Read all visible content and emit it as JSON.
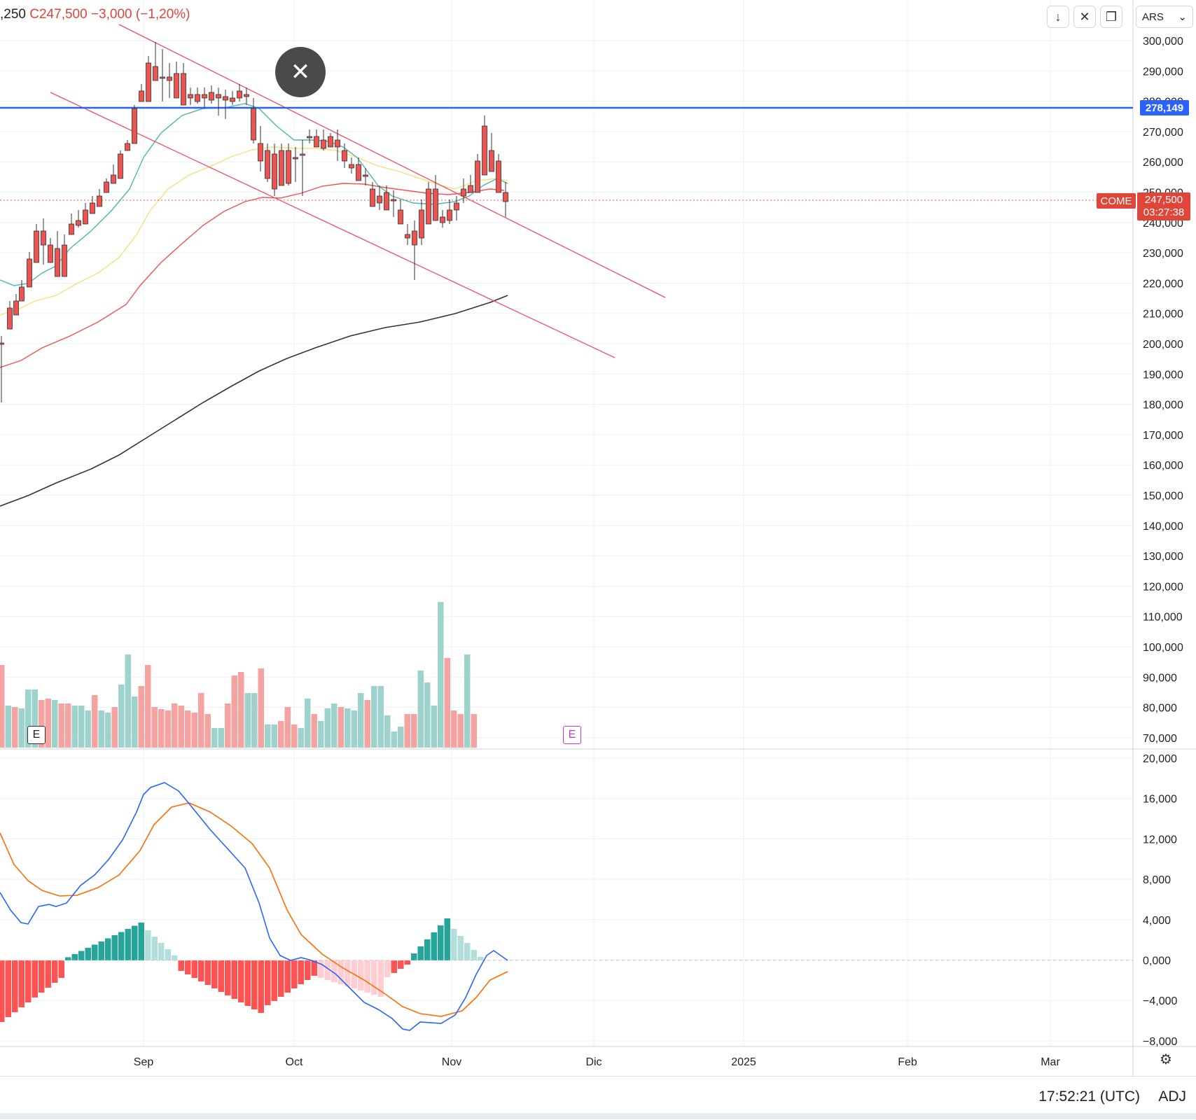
{
  "header": {
    "ohlc_prefix": ",250",
    "close_label": "C247,500",
    "change": "−3,000 (−1,20%)"
  },
  "toolbar": {
    "download_icon": "↓",
    "collapse_icon": "✕",
    "fullscreen_icon": "❐",
    "currency": "ARS",
    "currency_chevron": "⌄"
  },
  "close_overlay": {
    "icon": "✕"
  },
  "price_axis": {
    "labels": [
      "300,000",
      "290,000",
      "280,000",
      "270,000",
      "260,000",
      "250,000",
      "240,000",
      "230,000",
      "220,000",
      "210,000",
      "200,000",
      "190,000",
      "180,000",
      "170,000",
      "160,000",
      "150,000",
      "140,000",
      "130,000",
      "120,000",
      "110,000",
      "100,000",
      "90,000",
      "80,000",
      "70,000"
    ]
  },
  "macd_axis": {
    "labels": [
      "20,000",
      "16,000",
      "12,000",
      "8,000",
      "4,000",
      "0,000",
      "−4,000",
      "−8,000"
    ]
  },
  "time_axis": {
    "labels": [
      "Sep",
      "Oct",
      "Nov",
      "Dic",
      "2025",
      "Feb",
      "Mar"
    ]
  },
  "badges": {
    "horizontal_line": "278,149",
    "symbol": "COME",
    "last_price": "247,500",
    "countdown": "03:27:38"
  },
  "events": {
    "e1": "E",
    "e2": "E"
  },
  "status": {
    "clock": "17:52:21 (UTC)",
    "adj": "ADJ"
  },
  "colors": {
    "up": "#26a69a",
    "down": "#ef5350",
    "blue_line": "#2962ff",
    "trend_lines": "#f0505f",
    "macd": "#2962ff",
    "signal": "#ff6d00",
    "ma_teal": "#4db6ac",
    "ma_yellow": "#f5e07a",
    "ma_red": "#ef5350",
    "ma_black": "#333333"
  }
}
